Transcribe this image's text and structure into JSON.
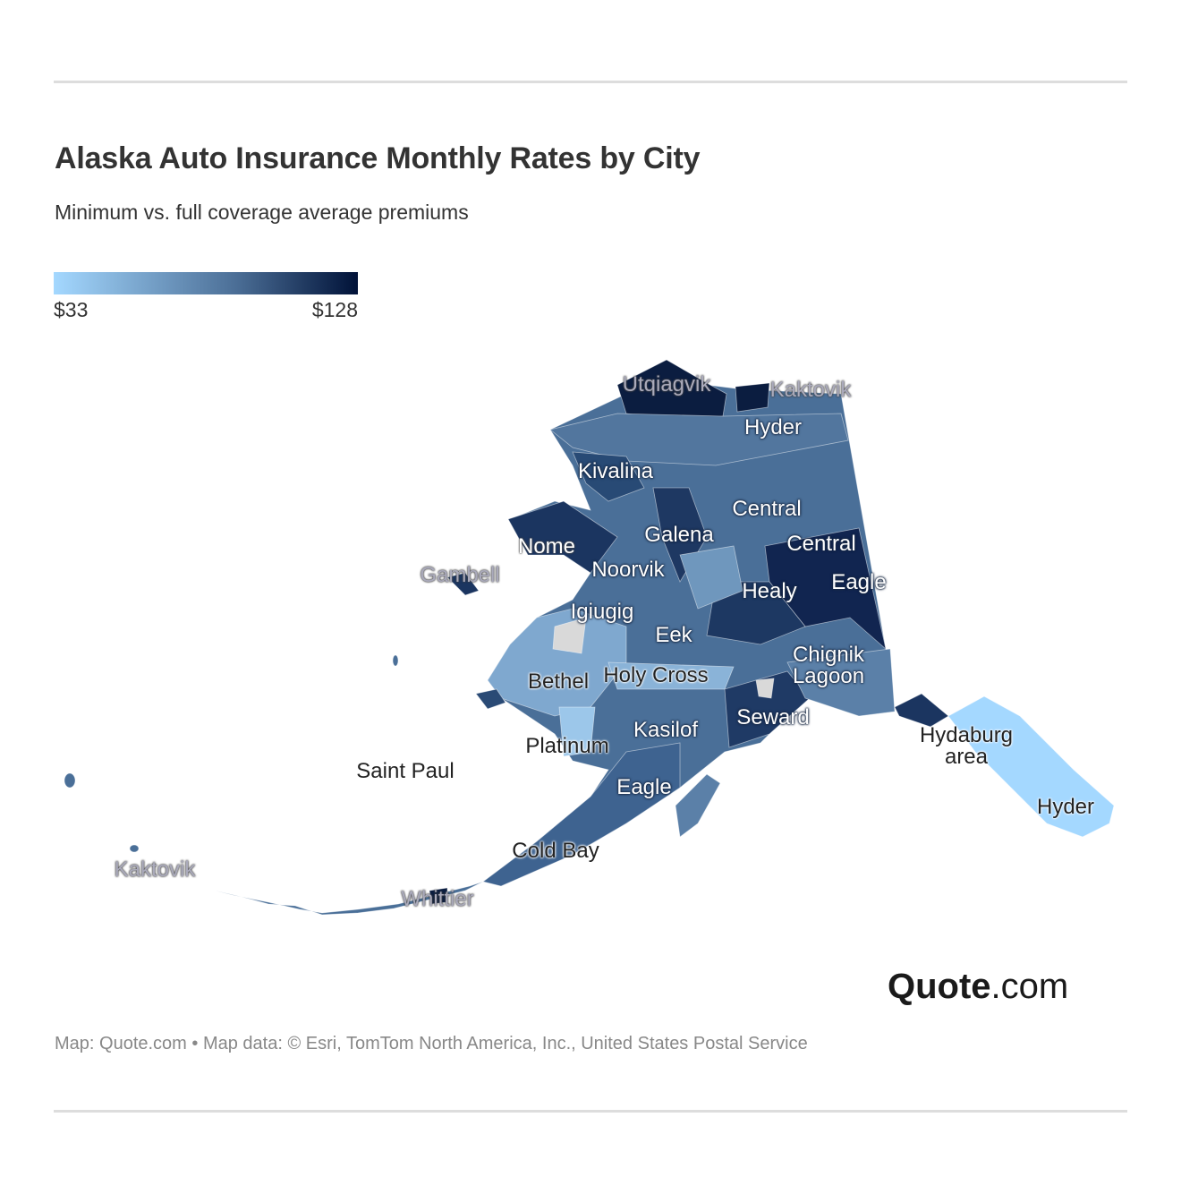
{
  "title": "Alaska Auto Insurance Monthly Rates by City",
  "subtitle": "Minimum vs. full coverage average premiums",
  "legend": {
    "min": "$33",
    "max": "$128",
    "min_color": "#a4d8ff",
    "max_color": "#001238"
  },
  "labels": [
    "Utqiagvik",
    "Kaktovik",
    "Hyder",
    "Kivalina",
    "Central",
    "Galena",
    "Central",
    "Nome",
    "Noorvik",
    "Gambell",
    "Healy",
    "Eagle",
    "Igiugig",
    "Eek",
    "Chignik\nLagoon",
    "Bethel",
    "Holy Cross",
    "Seward",
    "Kasilof",
    "Hydaburg\narea",
    "Platinum",
    "Saint Paul",
    "Eagle",
    "Hyder",
    "Cold Bay",
    "Kaktovik",
    "Whittier"
  ],
  "logo": {
    "bold": "Quote",
    "rest": ".com"
  },
  "credit": "Map: Quote.com • Map data: © Esri, TomTom North America, Inc., United States Postal Service"
}
